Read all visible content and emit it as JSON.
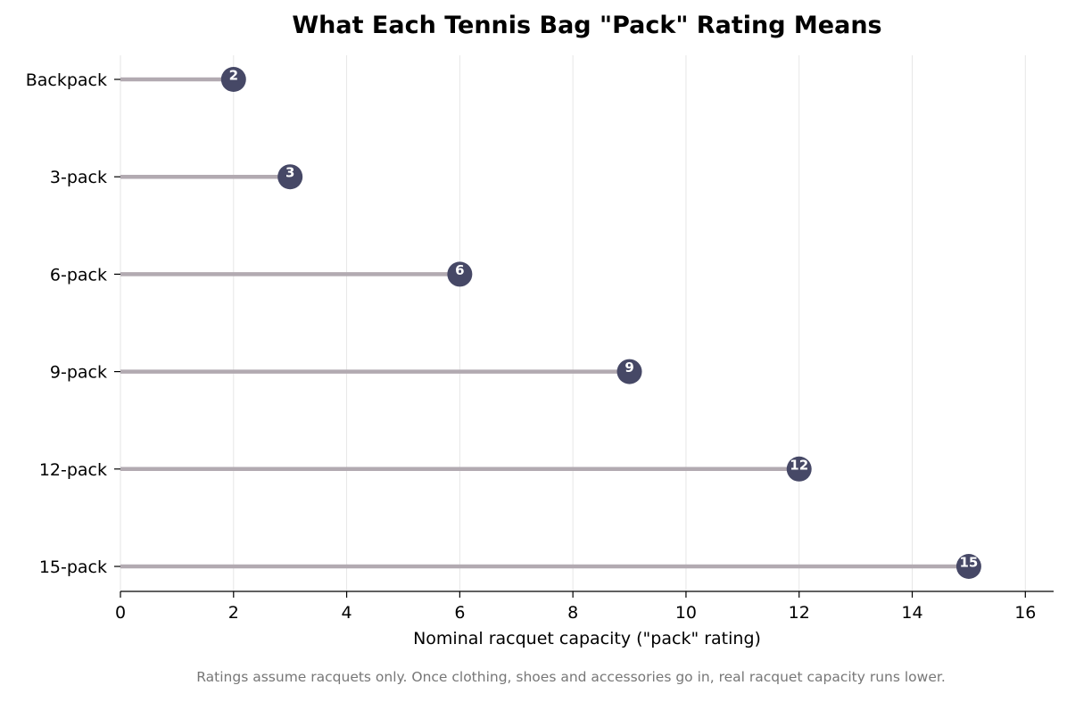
{
  "chart_data": {
    "type": "lollipop",
    "title": "What Each Tennis Bag \"Pack\" Rating Means",
    "xlabel": "Nominal racquet capacity (\"pack\" rating)",
    "ylabel": "",
    "xlim": [
      0,
      16.5
    ],
    "x_ticks": [
      0,
      2,
      4,
      6,
      8,
      10,
      12,
      14,
      16
    ],
    "orientation": "horizontal",
    "grid": "vertical",
    "categories": [
      "Backpack",
      "3-pack",
      "6-pack",
      "9-pack",
      "12-pack",
      "15-pack"
    ],
    "values": [
      2,
      3,
      6,
      9,
      12,
      15
    ],
    "value_labels": [
      "2",
      "3",
      "6",
      "9",
      "12",
      "15"
    ],
    "footnote": "Ratings assume racquets only. Once clothing, shoes and accessories go in, real racquet capacity runs lower."
  },
  "colors": {
    "stem": "#b2aab1",
    "marker": "#464866",
    "grid": "#e6e6e6",
    "axis": "#000000",
    "footnote": "#777777"
  }
}
